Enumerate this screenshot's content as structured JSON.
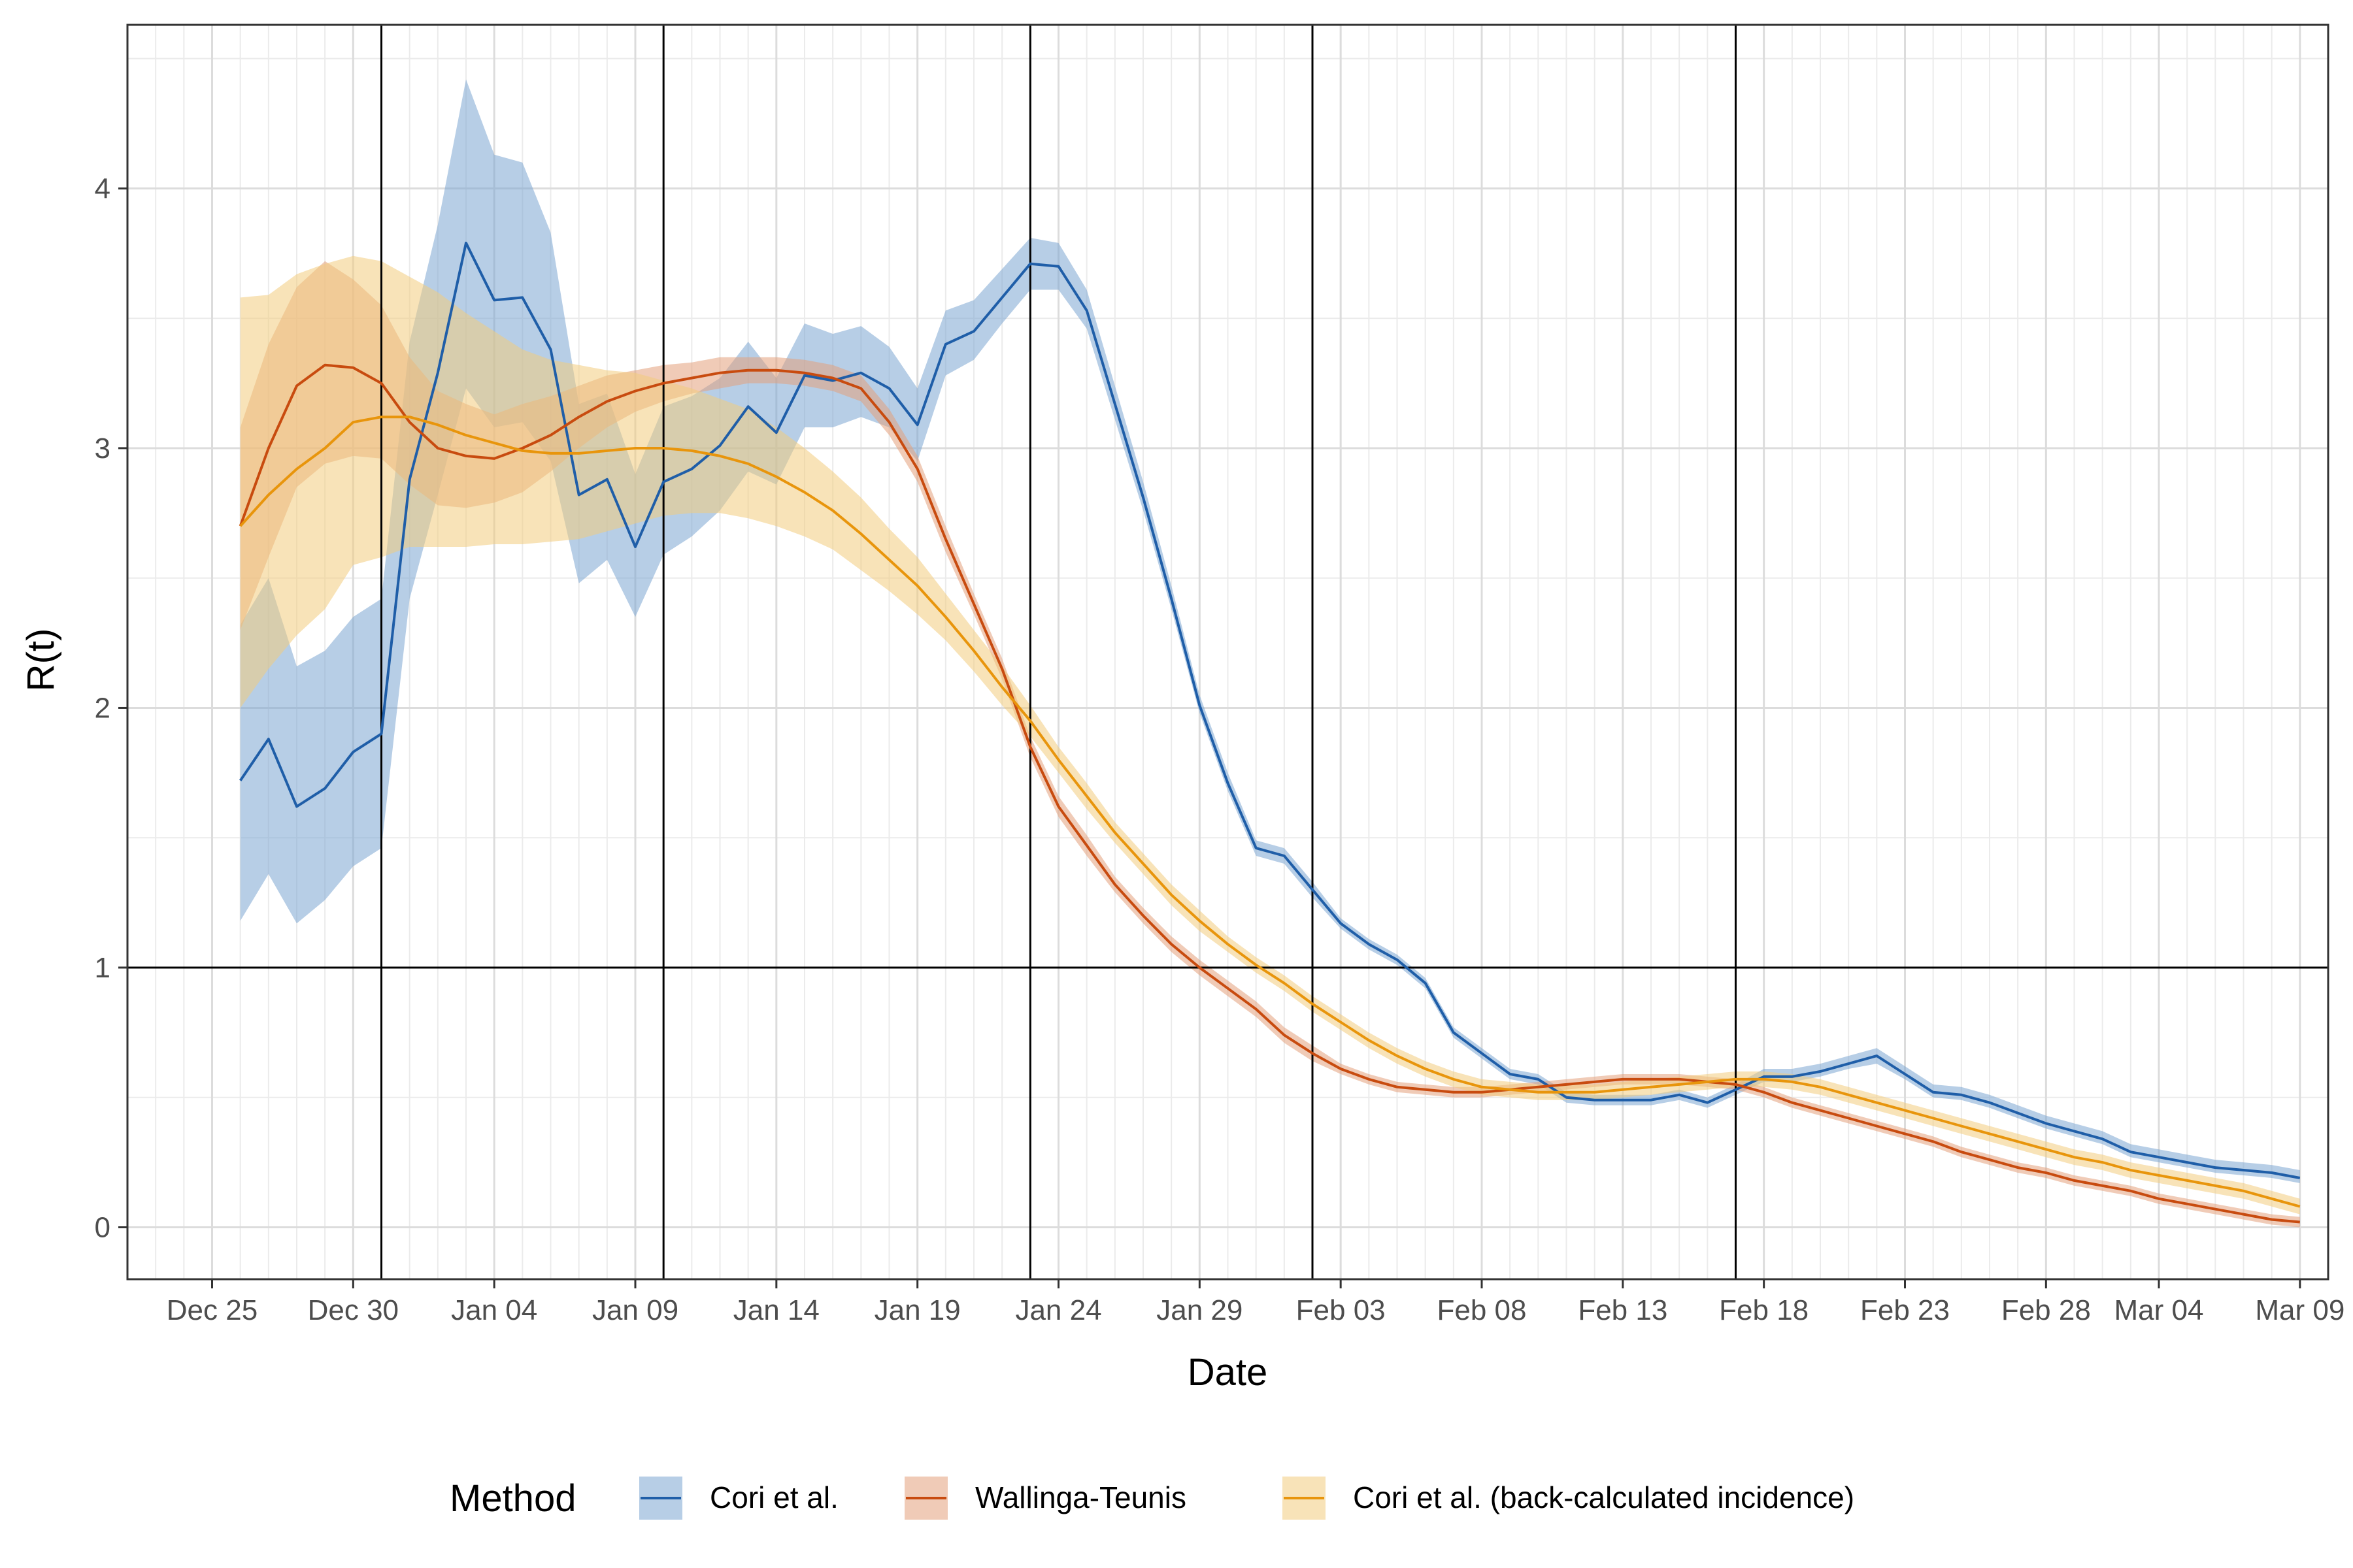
{
  "chart_data": {
    "type": "line",
    "title": "",
    "xlabel": "Date",
    "ylabel": "R(t)",
    "xlim": [
      "2021-12-22",
      "2022-03-10"
    ],
    "ylim": [
      -0.2,
      4.63
    ],
    "grid": true,
    "legend_position": "bottom",
    "legend_title": "Method",
    "x_ticks": [
      "2021-12-25",
      "2021-12-30",
      "2022-01-04",
      "2022-01-09",
      "2022-01-14",
      "2022-01-19",
      "2022-01-24",
      "2022-01-29",
      "2022-02-03",
      "2022-02-08",
      "2022-02-13",
      "2022-02-18",
      "2022-02-23",
      "2022-02-28",
      "2022-03-04",
      "2022-03-09"
    ],
    "x_tick_labels": [
      "Dec 25",
      "Dec 30",
      "Jan 04",
      "Jan 09",
      "Jan 14",
      "Jan 19",
      "Jan 24",
      "Jan 29",
      "Feb 03",
      "Feb 08",
      "Feb 13",
      "Feb 18",
      "Feb 23",
      "Feb 28",
      "Mar 04",
      "Mar 09"
    ],
    "y_ticks": [
      0,
      1,
      2,
      3,
      4
    ],
    "y_tick_labels": [
      "0",
      "1",
      "2",
      "3",
      "4"
    ],
    "reference_lines": {
      "horizontal": [
        1
      ],
      "vertical": [
        "2021-12-31",
        "2022-01-10",
        "2022-01-23",
        "2022-02-02",
        "2022-02-17"
      ]
    },
    "x_start": "2021-12-26",
    "series": [
      {
        "name": "Cori et al.",
        "color": "#1f5ea8",
        "fill": "#7ba5d1",
        "values": [
          1.72,
          1.88,
          1.62,
          1.69,
          1.83,
          1.9,
          2.88,
          3.29,
          3.79,
          3.57,
          3.58,
          3.38,
          2.82,
          2.88,
          2.62,
          2.87,
          2.92,
          3.01,
          3.16,
          3.06,
          3.28,
          3.26,
          3.29,
          3.23,
          3.09,
          3.4,
          3.45,
          3.58,
          3.71,
          3.7,
          3.53,
          3.17,
          2.81,
          2.42,
          2.01,
          1.71,
          1.46,
          1.43,
          1.3,
          1.17,
          1.09,
          1.03,
          0.94,
          0.75,
          0.67,
          0.59,
          0.57,
          0.5,
          0.49,
          0.49,
          0.49,
          0.51,
          0.48,
          0.53,
          0.58,
          0.58,
          0.6,
          0.63,
          0.66,
          0.59,
          0.52,
          0.51,
          0.48,
          0.44,
          0.4,
          0.37,
          0.34,
          0.29,
          0.27,
          0.25,
          0.23,
          0.22,
          0.21,
          0.19
        ],
        "lower": [
          1.18,
          1.36,
          1.17,
          1.26,
          1.39,
          1.46,
          2.42,
          2.82,
          3.23,
          3.08,
          3.1,
          2.95,
          2.48,
          2.57,
          2.35,
          2.59,
          2.66,
          2.76,
          2.91,
          2.86,
          3.08,
          3.08,
          3.12,
          3.08,
          2.95,
          3.28,
          3.34,
          3.48,
          3.61,
          3.61,
          3.46,
          3.11,
          2.76,
          2.38,
          1.98,
          1.68,
          1.43,
          1.4,
          1.27,
          1.15,
          1.07,
          1.01,
          0.92,
          0.73,
          0.65,
          0.57,
          0.55,
          0.48,
          0.47,
          0.47,
          0.47,
          0.49,
          0.46,
          0.51,
          0.56,
          0.56,
          0.58,
          0.61,
          0.63,
          0.57,
          0.5,
          0.49,
          0.46,
          0.42,
          0.38,
          0.35,
          0.32,
          0.27,
          0.25,
          0.23,
          0.21,
          0.2,
          0.19,
          0.17
        ],
        "upper": [
          2.32,
          2.5,
          2.16,
          2.22,
          2.35,
          2.42,
          3.41,
          3.86,
          4.42,
          4.13,
          4.1,
          3.83,
          3.17,
          3.21,
          2.9,
          3.16,
          3.2,
          3.27,
          3.41,
          3.27,
          3.48,
          3.44,
          3.47,
          3.39,
          3.23,
          3.53,
          3.57,
          3.69,
          3.81,
          3.79,
          3.61,
          3.24,
          2.87,
          2.47,
          2.05,
          1.75,
          1.49,
          1.46,
          1.33,
          1.19,
          1.11,
          1.05,
          0.96,
          0.77,
          0.69,
          0.61,
          0.59,
          0.52,
          0.51,
          0.51,
          0.51,
          0.53,
          0.5,
          0.55,
          0.61,
          0.61,
          0.63,
          0.66,
          0.69,
          0.62,
          0.55,
          0.54,
          0.51,
          0.47,
          0.43,
          0.4,
          0.37,
          0.32,
          0.3,
          0.28,
          0.26,
          0.25,
          0.24,
          0.22
        ]
      },
      {
        "name": "Wallinga-Teunis",
        "color": "#c84b0f",
        "fill": "#e3a07c",
        "values": [
          2.7,
          3.0,
          3.24,
          3.32,
          3.31,
          3.25,
          3.1,
          3.0,
          2.97,
          2.96,
          3.0,
          3.05,
          3.12,
          3.18,
          3.22,
          3.25,
          3.27,
          3.29,
          3.3,
          3.3,
          3.29,
          3.27,
          3.23,
          3.1,
          2.92,
          2.65,
          2.4,
          2.15,
          1.85,
          1.62,
          1.47,
          1.32,
          1.2,
          1.09,
          1.0,
          0.92,
          0.84,
          0.74,
          0.67,
          0.61,
          0.57,
          0.54,
          0.53,
          0.52,
          0.52,
          0.53,
          0.54,
          0.55,
          0.56,
          0.57,
          0.57,
          0.57,
          0.56,
          0.55,
          0.52,
          0.48,
          0.45,
          0.42,
          0.39,
          0.36,
          0.33,
          0.29,
          0.26,
          0.23,
          0.21,
          0.18,
          0.16,
          0.14,
          0.11,
          0.09,
          0.07,
          0.05,
          0.03,
          0.02
        ],
        "lower": [
          2.3,
          2.58,
          2.85,
          2.94,
          2.97,
          2.96,
          2.86,
          2.78,
          2.77,
          2.79,
          2.83,
          2.91,
          3.0,
          3.08,
          3.14,
          3.18,
          3.21,
          3.23,
          3.25,
          3.25,
          3.24,
          3.22,
          3.18,
          3.05,
          2.87,
          2.6,
          2.36,
          2.11,
          1.81,
          1.58,
          1.43,
          1.29,
          1.17,
          1.06,
          0.97,
          0.89,
          0.81,
          0.71,
          0.64,
          0.59,
          0.55,
          0.52,
          0.51,
          0.5,
          0.5,
          0.51,
          0.52,
          0.53,
          0.54,
          0.55,
          0.55,
          0.55,
          0.54,
          0.53,
          0.5,
          0.46,
          0.43,
          0.4,
          0.37,
          0.34,
          0.31,
          0.27,
          0.24,
          0.21,
          0.19,
          0.16,
          0.14,
          0.12,
          0.09,
          0.07,
          0.05,
          0.03,
          0.01,
          0.0
        ],
        "upper": [
          3.08,
          3.4,
          3.62,
          3.72,
          3.65,
          3.55,
          3.35,
          3.22,
          3.17,
          3.13,
          3.17,
          3.2,
          3.24,
          3.28,
          3.3,
          3.32,
          3.33,
          3.35,
          3.35,
          3.35,
          3.34,
          3.32,
          3.28,
          3.15,
          2.97,
          2.7,
          2.44,
          2.19,
          1.89,
          1.66,
          1.51,
          1.35,
          1.23,
          1.12,
          1.03,
          0.95,
          0.87,
          0.77,
          0.7,
          0.63,
          0.59,
          0.56,
          0.55,
          0.54,
          0.54,
          0.55,
          0.56,
          0.57,
          0.58,
          0.59,
          0.59,
          0.59,
          0.58,
          0.57,
          0.54,
          0.5,
          0.47,
          0.44,
          0.41,
          0.38,
          0.35,
          0.31,
          0.28,
          0.25,
          0.23,
          0.2,
          0.18,
          0.16,
          0.13,
          0.11,
          0.09,
          0.07,
          0.05,
          0.04
        ]
      },
      {
        "name": "Cori et al. (back-calculated incidence)",
        "color": "#e8950c",
        "fill": "#f3cc7e",
        "values": [
          2.7,
          2.82,
          2.92,
          3.0,
          3.1,
          3.12,
          3.12,
          3.09,
          3.05,
          3.02,
          2.99,
          2.98,
          2.98,
          2.99,
          3.0,
          3.0,
          2.99,
          2.97,
          2.94,
          2.89,
          2.83,
          2.76,
          2.67,
          2.57,
          2.47,
          2.35,
          2.22,
          2.08,
          1.95,
          1.8,
          1.66,
          1.52,
          1.4,
          1.28,
          1.18,
          1.09,
          1.01,
          0.94,
          0.86,
          0.79,
          0.72,
          0.66,
          0.61,
          0.57,
          0.54,
          0.53,
          0.52,
          0.52,
          0.52,
          0.53,
          0.54,
          0.55,
          0.56,
          0.57,
          0.57,
          0.56,
          0.54,
          0.51,
          0.48,
          0.45,
          0.42,
          0.39,
          0.36,
          0.33,
          0.3,
          0.27,
          0.25,
          0.22,
          0.2,
          0.18,
          0.16,
          0.14,
          0.11,
          0.08
        ],
        "lower": [
          2.0,
          2.15,
          2.28,
          2.38,
          2.55,
          2.58,
          2.62,
          2.62,
          2.62,
          2.63,
          2.63,
          2.64,
          2.65,
          2.68,
          2.71,
          2.74,
          2.75,
          2.75,
          2.73,
          2.7,
          2.66,
          2.61,
          2.53,
          2.45,
          2.36,
          2.26,
          2.14,
          2.01,
          1.89,
          1.75,
          1.61,
          1.48,
          1.36,
          1.24,
          1.14,
          1.06,
          0.98,
          0.91,
          0.83,
          0.76,
          0.69,
          0.63,
          0.58,
          0.54,
          0.51,
          0.5,
          0.49,
          0.49,
          0.49,
          0.5,
          0.51,
          0.52,
          0.53,
          0.54,
          0.54,
          0.53,
          0.51,
          0.48,
          0.45,
          0.42,
          0.39,
          0.36,
          0.33,
          0.3,
          0.27,
          0.24,
          0.22,
          0.19,
          0.17,
          0.15,
          0.13,
          0.11,
          0.08,
          0.05
        ],
        "upper": [
          3.58,
          3.59,
          3.67,
          3.71,
          3.74,
          3.72,
          3.66,
          3.6,
          3.52,
          3.45,
          3.38,
          3.34,
          3.32,
          3.3,
          3.29,
          3.26,
          3.23,
          3.19,
          3.15,
          3.08,
          3.0,
          2.91,
          2.81,
          2.69,
          2.58,
          2.44,
          2.3,
          2.16,
          2.01,
          1.85,
          1.71,
          1.56,
          1.44,
          1.32,
          1.22,
          1.12,
          1.04,
          0.97,
          0.89,
          0.82,
          0.75,
          0.69,
          0.64,
          0.6,
          0.57,
          0.56,
          0.55,
          0.55,
          0.55,
          0.56,
          0.57,
          0.58,
          0.59,
          0.6,
          0.6,
          0.59,
          0.57,
          0.54,
          0.51,
          0.48,
          0.45,
          0.42,
          0.39,
          0.36,
          0.33,
          0.3,
          0.28,
          0.25,
          0.23,
          0.21,
          0.19,
          0.17,
          0.14,
          0.11
        ]
      }
    ]
  }
}
